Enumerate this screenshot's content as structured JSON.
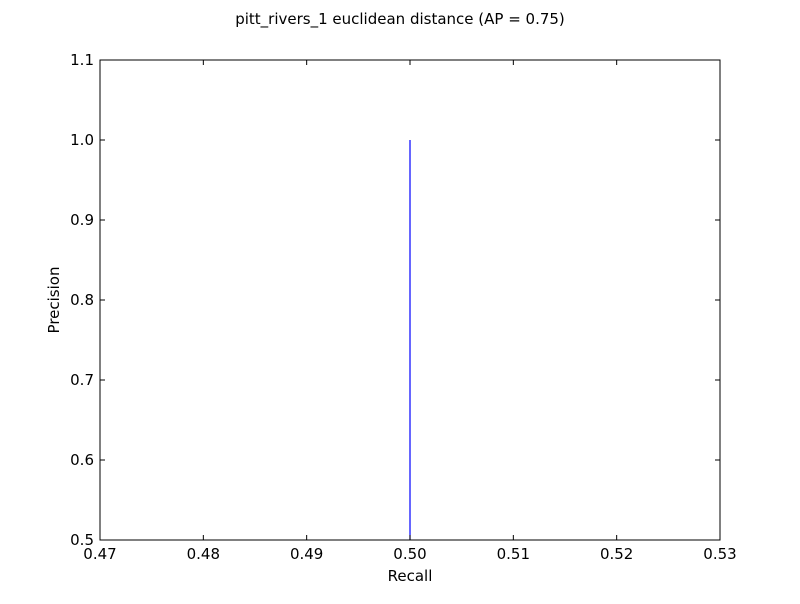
{
  "chart_data": {
    "type": "line",
    "title": "pitt_rivers_1 euclidean distance  (AP = 0.75)",
    "xlabel": "Recall",
    "ylabel": "Precision",
    "xlim": [
      0.47,
      0.53
    ],
    "ylim": [
      0.5,
      1.1
    ],
    "x_ticks": [
      "0.47",
      "0.48",
      "0.49",
      "0.50",
      "0.51",
      "0.52",
      "0.53"
    ],
    "y_ticks": [
      "0.5",
      "0.6",
      "0.7",
      "0.8",
      "0.9",
      "1.0",
      "1.1"
    ],
    "grid": false,
    "series": [
      {
        "color": "#0000ff",
        "x": [
          0.5,
          0.5
        ],
        "y": [
          1.0,
          0.5
        ]
      }
    ]
  }
}
